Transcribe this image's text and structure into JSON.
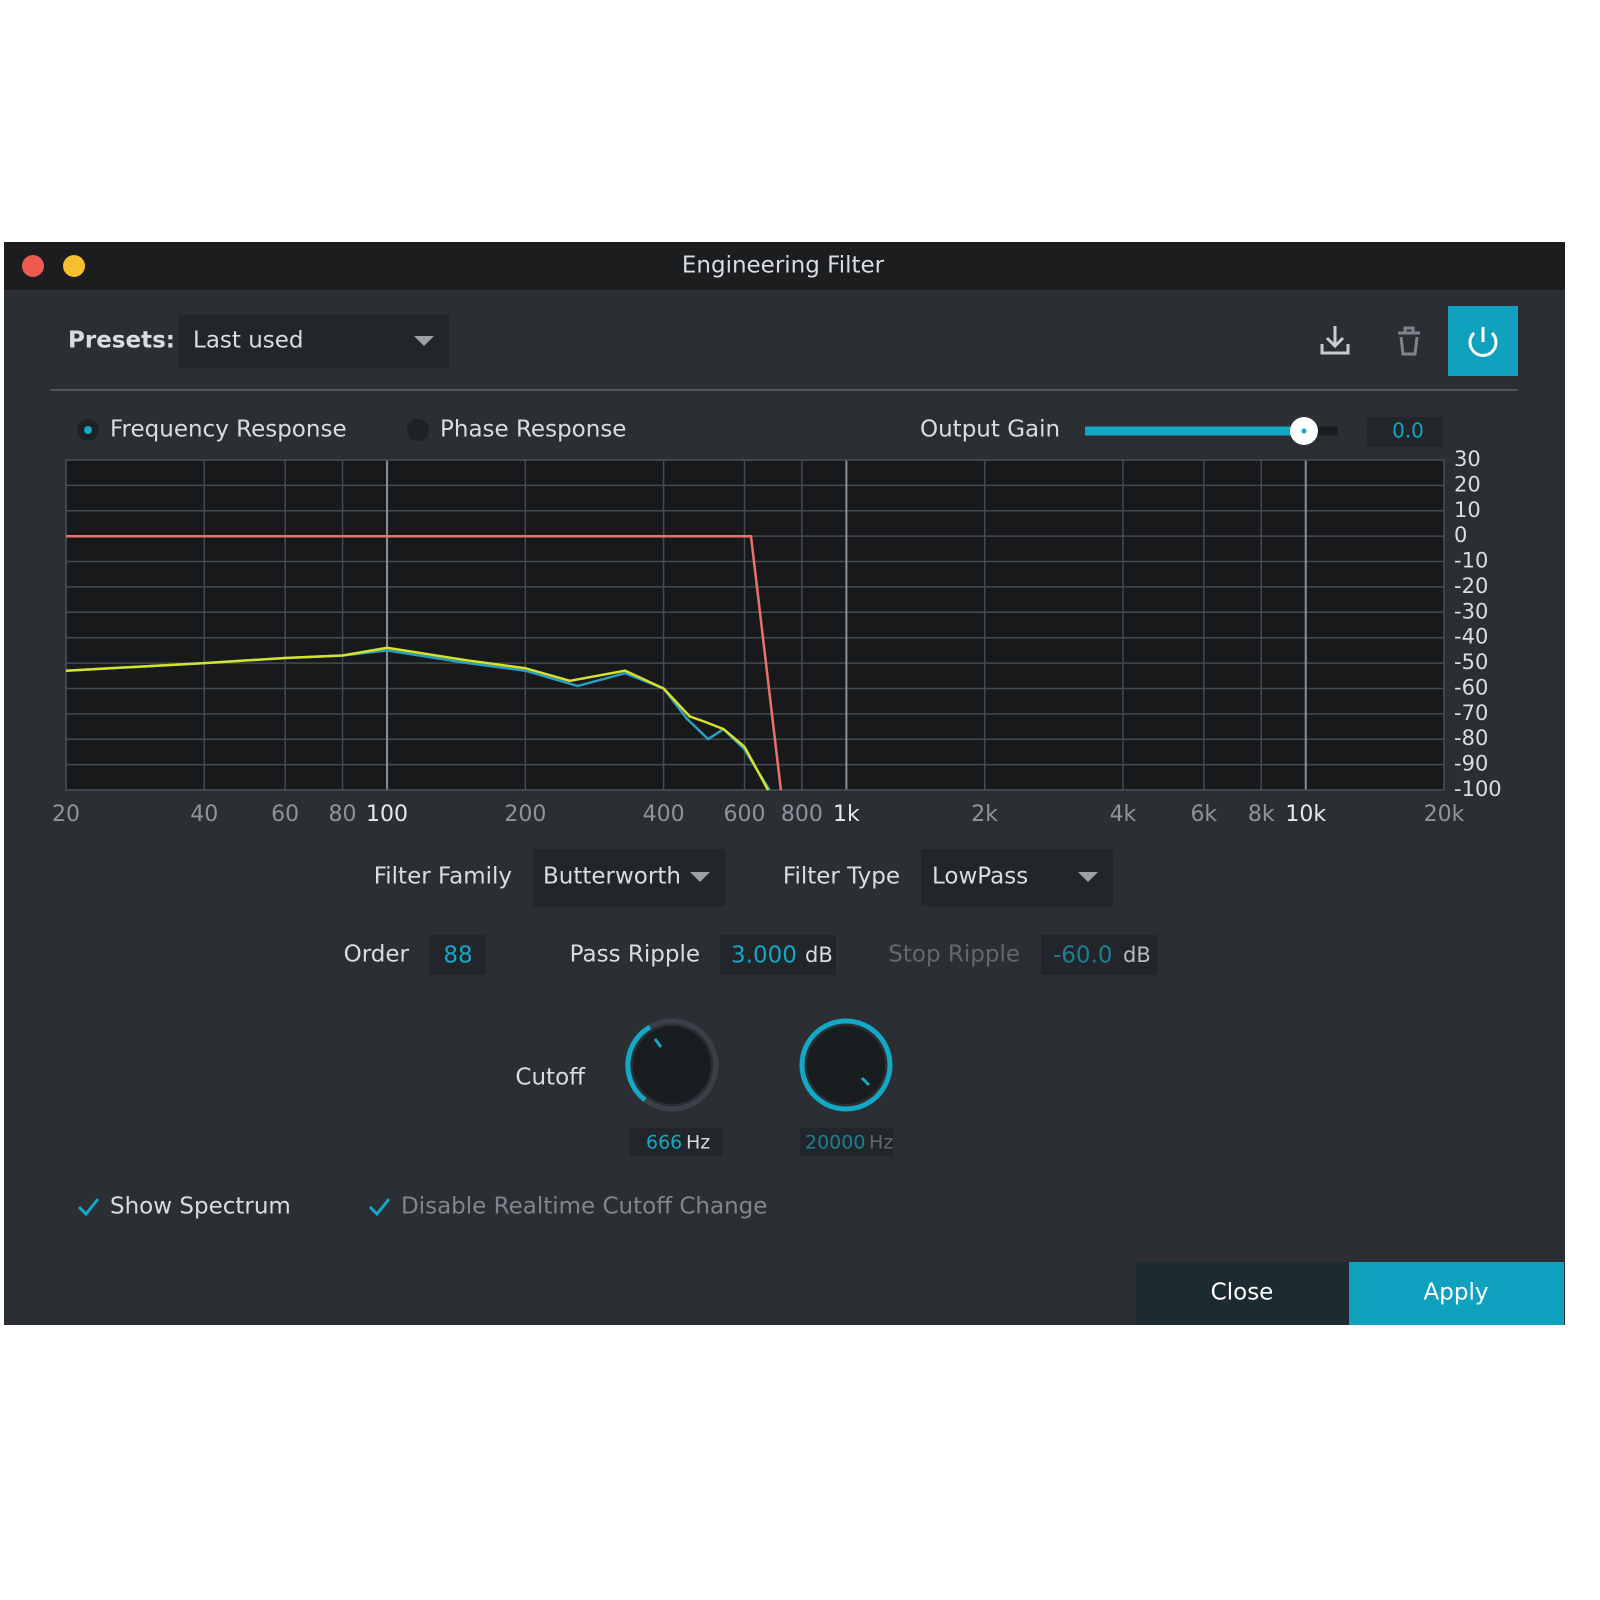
{
  "window": {
    "title": "Engineering Filter"
  },
  "presets": {
    "label": "Presets:",
    "value": "Last used"
  },
  "tabs": [
    "Frequency Response",
    "Phase Response"
  ],
  "output_gain": {
    "label": "Output Gain",
    "value": "0.0"
  },
  "chart_data": {
    "type": "line",
    "xscale": "log",
    "grid": true,
    "xlim": [
      20,
      20000
    ],
    "ylim": [
      -100,
      30
    ],
    "xticks": [
      20,
      40,
      60,
      80,
      {
        "value": 100,
        "label": "100"
      },
      200,
      400,
      600,
      800,
      {
        "value": 1000,
        "label": "1k"
      },
      {
        "value": 2000,
        "label": "2k"
      },
      {
        "value": 4000,
        "label": "4k"
      },
      {
        "value": 6000,
        "label": "6k"
      },
      {
        "value": 8000,
        "label": "8k"
      },
      {
        "value": 10000,
        "label": "10k"
      },
      {
        "value": 20000,
        "label": "20k"
      }
    ],
    "yticks": [
      30,
      20,
      10,
      0,
      -10,
      -20,
      -30,
      -40,
      -50,
      -60,
      -70,
      -80,
      -90,
      -100
    ],
    "series": [
      {
        "color": "#e9736b",
        "x": [
          20,
          620,
          720
        ],
        "values": [
          0,
          0,
          -100
        ]
      },
      {
        "color": "#2a9fc0",
        "x": [
          20,
          40,
          60,
          80,
          100,
          150,
          200,
          260,
          330,
          400,
          450,
          500,
          540,
          600,
          680
        ],
        "values": [
          -53,
          -50,
          -48,
          -47,
          -45,
          -50,
          -53,
          -59,
          -54,
          -60,
          -72,
          -80,
          -76,
          -84,
          -100
        ]
      },
      {
        "color": "#d7e02a",
        "x": [
          20,
          40,
          60,
          80,
          100,
          150,
          200,
          250,
          330,
          400,
          456,
          490,
          540,
          600,
          675
        ],
        "values": [
          -53,
          -50,
          -48,
          -47,
          -44,
          -49,
          -52,
          -57,
          -53,
          -60,
          -71,
          -73,
          -76,
          -83,
          -100
        ]
      }
    ]
  },
  "filter_family": {
    "label": "Filter Family",
    "value": "Butterworth"
  },
  "filter_type": {
    "label": "Filter Type",
    "value": "LowPass"
  },
  "order": {
    "label": "Order",
    "value": "88"
  },
  "pass_ripple": {
    "label": "Pass Ripple",
    "value": "3.000",
    "unit": "dB"
  },
  "stop_ripple": {
    "label": "Stop Ripple",
    "value": "-60.0",
    "unit": "dB"
  },
  "cutoff": {
    "label": "Cutoff",
    "knobs": [
      {
        "value": "666",
        "unit": "Hz"
      },
      {
        "value": "20000",
        "unit": "Hz"
      }
    ]
  },
  "checkboxes": [
    "Show Spectrum",
    "Disable Realtime Cutoff Change"
  ],
  "buttons": [
    "Close",
    "Apply"
  ]
}
